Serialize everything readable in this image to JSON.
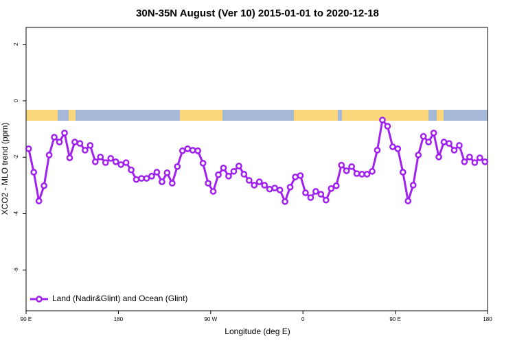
{
  "chart_data": {
    "type": "line",
    "title": "30N-35N August (Ver 10)   2015-01-01 to 2020-12-18",
    "x_label": "Longitude (deg E)",
    "y_label": "XCO2 - MLO trend (ppm)",
    "xlim": [
      90,
      540
    ],
    "ylim": [
      -7.44,
      2.6
    ],
    "xticks": [
      {
        "value": 90,
        "label": "90 E"
      },
      180,
      {
        "value": 270,
        "label": "90 W"
      },
      {
        "value": 360,
        "label": "0"
      },
      {
        "value": 450,
        "label": "90 E"
      },
      {
        "value": 540,
        "label": "180"
      }
    ],
    "yticks": [
      2,
      0,
      -2,
      -4,
      -6
    ],
    "legend": "bottom-left",
    "x": [
      92.5,
      97.5,
      102.5,
      107.5,
      112.5,
      117.5,
      122.5,
      127.5,
      132.5,
      137.5,
      142.5,
      147.5,
      152.5,
      157.5,
      162.5,
      167.5,
      172.5,
      177.5,
      182.5,
      187.5,
      192.5,
      197.5,
      202.5,
      207.5,
      212.5,
      217.5,
      222.5,
      227.5,
      232.5,
      237.5,
      242.5,
      247.5,
      252.5,
      257.5,
      262.5,
      267.5,
      272.5,
      277.5,
      282.5,
      287.5,
      292.5,
      297.5,
      302.5,
      307.5,
      312.5,
      317.5,
      322.5,
      327.5,
      332.5,
      337.5,
      342.5,
      347.5,
      352.5,
      357.5,
      362.5,
      367.5,
      372.5,
      377.5,
      382.5,
      387.5,
      392.5,
      397.5,
      402.5,
      407.5,
      412.5,
      417.5,
      422.5,
      427.5,
      432.5,
      437.5,
      442.5,
      447.5,
      452.5,
      457.5,
      462.5,
      467.5,
      472.5,
      477.5,
      482.5,
      487.5,
      492.5,
      497.5,
      502.5,
      507.5,
      512.5,
      517.5,
      522.5,
      527.5,
      532.5,
      537.5
    ],
    "series": [
      {
        "name": "Land (Nadir&Glint) and Ocean (Glint)",
        "color": "#a020f0",
        "values": [
          -1.7,
          -2.53,
          -3.55,
          -3.01,
          -1.92,
          -1.29,
          -1.46,
          -1.14,
          -2.02,
          -1.46,
          -1.51,
          -1.75,
          -1.58,
          -2.16,
          -1.99,
          -2.19,
          -2.04,
          -2.16,
          -2.26,
          -2.19,
          -2.45,
          -2.79,
          -2.75,
          -2.75,
          -2.67,
          -2.53,
          -2.87,
          -2.55,
          -2.92,
          -2.33,
          -1.77,
          -1.7,
          -1.75,
          -1.77,
          -2.21,
          -2.92,
          -3.21,
          -2.62,
          -2.38,
          -2.67,
          -2.5,
          -2.31,
          -2.6,
          -2.82,
          -2.99,
          -2.87,
          -2.99,
          -3.13,
          -3.09,
          -3.16,
          -3.57,
          -3.06,
          -2.7,
          -2.65,
          -3.26,
          -3.43,
          -3.21,
          -3.31,
          -3.52,
          -3.11,
          -3.01,
          -2.28,
          -2.48,
          -2.33,
          -2.58,
          -2.6,
          -2.6,
          -2.5,
          -1.75,
          -0.68,
          -0.9,
          -1.63,
          -1.7,
          -2.53,
          -3.55,
          -2.99,
          -1.92,
          -1.26,
          -1.46,
          -1.14,
          -1.99,
          -1.46,
          -1.51,
          -1.75,
          -1.58,
          -2.16,
          -1.99,
          -2.19,
          -2.02,
          -2.16
        ]
      }
    ]
  }
}
